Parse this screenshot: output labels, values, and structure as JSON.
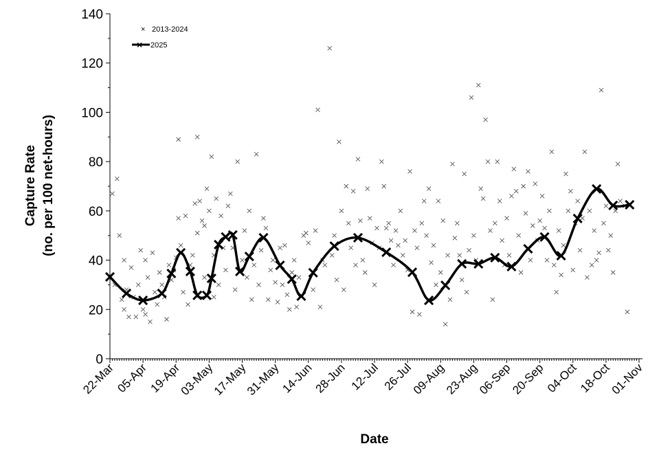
{
  "chart_data": {
    "type": "line",
    "xlabel": "Date",
    "ylabel_line1": "Capture Rate",
    "ylabel_line2": "(no. per 100 net-hours)",
    "ylim": [
      0,
      140
    ],
    "yticks": [
      0,
      20,
      40,
      60,
      80,
      100,
      120,
      140
    ],
    "x_unit": "days since 22-Mar",
    "xlim": [
      0,
      224
    ],
    "xtick_labels": [
      "22-Mar",
      "05-Apr",
      "19-Apr",
      "03-May",
      "17-May",
      "31-May",
      "14-Jun",
      "28-Jun",
      "12-Jul",
      "26-Jul",
      "09-Aug",
      "23-Aug",
      "06-Sep",
      "20-Sep",
      "04-Oct",
      "18-Oct",
      "01-Nov"
    ],
    "grid": false,
    "legend_position": "top-left",
    "series": [
      {
        "name": "2013-2024",
        "style": "scatter-x",
        "color": "#555555",
        "points": [
          [
            1,
            67
          ],
          [
            3,
            73
          ],
          [
            4,
            50
          ],
          [
            2,
            30
          ],
          [
            5,
            24
          ],
          [
            6,
            40
          ],
          [
            6,
            20
          ],
          [
            7,
            28
          ],
          [
            8,
            17
          ],
          [
            9,
            37
          ],
          [
            10,
            25
          ],
          [
            11,
            17
          ],
          [
            12,
            30
          ],
          [
            13,
            44
          ],
          [
            14,
            20
          ],
          [
            15,
            18
          ],
          [
            15,
            40
          ],
          [
            16,
            33
          ],
          [
            17,
            15
          ],
          [
            18,
            43
          ],
          [
            19,
            27
          ],
          [
            20,
            22
          ],
          [
            21,
            35
          ],
          [
            22,
            30
          ],
          [
            23,
            25
          ],
          [
            24,
            16
          ],
          [
            25,
            38
          ],
          [
            26,
            32
          ],
          [
            27,
            36
          ],
          [
            28,
            41
          ],
          [
            29,
            89
          ],
          [
            29,
            57
          ],
          [
            30,
            46
          ],
          [
            31,
            27
          ],
          [
            32,
            58
          ],
          [
            33,
            22
          ],
          [
            34,
            38
          ],
          [
            35,
            42
          ],
          [
            36,
            63
          ],
          [
            37,
            90
          ],
          [
            37,
            51
          ],
          [
            38,
            64
          ],
          [
            39,
            56
          ],
          [
            40,
            54
          ],
          [
            40,
            33
          ],
          [
            41,
            69
          ],
          [
            42,
            60
          ],
          [
            43,
            82
          ],
          [
            44,
            42
          ],
          [
            44,
            25
          ],
          [
            45,
            65
          ],
          [
            46,
            30
          ],
          [
            47,
            58
          ],
          [
            48,
            45
          ],
          [
            49,
            36
          ],
          [
            50,
            62
          ],
          [
            51,
            67
          ],
          [
            52,
            45
          ],
          [
            53,
            28
          ],
          [
            54,
            80
          ],
          [
            55,
            36
          ],
          [
            56,
            40
          ],
          [
            57,
            52
          ],
          [
            58,
            33
          ],
          [
            59,
            60
          ],
          [
            60,
            24
          ],
          [
            61,
            38
          ],
          [
            62,
            83
          ],
          [
            63,
            30
          ],
          [
            64,
            44
          ],
          [
            65,
            57
          ],
          [
            66,
            53
          ],
          [
            67,
            24
          ],
          [
            68,
            36
          ],
          [
            69,
            40
          ],
          [
            70,
            31
          ],
          [
            71,
            23
          ],
          [
            72,
            45
          ],
          [
            73,
            30
          ],
          [
            74,
            46
          ],
          [
            75,
            26
          ],
          [
            76,
            20
          ],
          [
            77,
            35
          ],
          [
            78,
            40
          ],
          [
            79,
            21
          ],
          [
            80,
            33
          ],
          [
            82,
            50
          ],
          [
            83,
            51
          ],
          [
            84,
            47
          ],
          [
            86,
            28
          ],
          [
            87,
            52
          ],
          [
            88,
            101
          ],
          [
            89,
            21
          ],
          [
            90,
            40
          ],
          [
            91,
            38
          ],
          [
            93,
            126
          ],
          [
            94,
            42
          ],
          [
            95,
            50
          ],
          [
            96,
            32
          ],
          [
            97,
            88
          ],
          [
            98,
            60
          ],
          [
            99,
            28
          ],
          [
            100,
            70
          ],
          [
            101,
            55
          ],
          [
            102,
            45
          ],
          [
            103,
            68
          ],
          [
            104,
            38
          ],
          [
            105,
            81
          ],
          [
            106,
            56
          ],
          [
            107,
            40
          ],
          [
            108,
            35
          ],
          [
            109,
            69
          ],
          [
            110,
            57
          ],
          [
            111,
            47
          ],
          [
            112,
            30
          ],
          [
            113,
            53
          ],
          [
            114,
            45
          ],
          [
            115,
            80
          ],
          [
            116,
            70
          ],
          [
            117,
            53
          ],
          [
            118,
            55
          ],
          [
            119,
            48
          ],
          [
            120,
            38
          ],
          [
            121,
            52
          ],
          [
            122,
            46
          ],
          [
            123,
            60
          ],
          [
            124,
            42
          ],
          [
            125,
            48
          ],
          [
            126,
            36
          ],
          [
            127,
            76
          ],
          [
            128,
            19
          ],
          [
            129,
            52
          ],
          [
            130,
            45
          ],
          [
            131,
            18
          ],
          [
            132,
            55
          ],
          [
            133,
            64
          ],
          [
            134,
            50
          ],
          [
            135,
            69
          ],
          [
            136,
            39
          ],
          [
            137,
            46
          ],
          [
            138,
            30
          ],
          [
            139,
            64
          ],
          [
            140,
            35
          ],
          [
            141,
            56
          ],
          [
            142,
            14
          ],
          [
            143,
            42
          ],
          [
            144,
            24
          ],
          [
            145,
            79
          ],
          [
            146,
            49
          ],
          [
            147,
            55
          ],
          [
            148,
            42
          ],
          [
            149,
            32
          ],
          [
            150,
            75
          ],
          [
            151,
            27
          ],
          [
            152,
            44
          ],
          [
            153,
            106
          ],
          [
            154,
            50
          ],
          [
            155,
            40
          ],
          [
            156,
            111
          ],
          [
            157,
            69
          ],
          [
            158,
            65
          ],
          [
            159,
            97
          ],
          [
            160,
            80
          ],
          [
            161,
            52
          ],
          [
            162,
            24
          ],
          [
            163,
            55
          ],
          [
            164,
            80
          ],
          [
            165,
            64
          ],
          [
            166,
            48
          ],
          [
            167,
            38
          ],
          [
            168,
            57
          ],
          [
            169,
            42
          ],
          [
            170,
            66
          ],
          [
            171,
            77
          ],
          [
            172,
            68
          ],
          [
            173,
            50
          ],
          [
            174,
            35
          ],
          [
            175,
            70
          ],
          [
            176,
            59
          ],
          [
            177,
            76
          ],
          [
            178,
            40
          ],
          [
            179,
            54
          ],
          [
            180,
            71
          ],
          [
            181,
            48
          ],
          [
            182,
            56
          ],
          [
            183,
            66
          ],
          [
            184,
            53
          ],
          [
            185,
            40
          ],
          [
            186,
            60
          ],
          [
            187,
            84
          ],
          [
            188,
            38
          ],
          [
            189,
            27
          ],
          [
            190,
            52
          ],
          [
            191,
            34
          ],
          [
            192,
            46
          ],
          [
            193,
            75
          ],
          [
            194,
            60
          ],
          [
            195,
            68
          ],
          [
            196,
            36
          ],
          [
            197,
            55
          ],
          [
            198,
            64
          ],
          [
            199,
            44
          ],
          [
            200,
            57
          ],
          [
            201,
            84
          ],
          [
            202,
            33
          ],
          [
            203,
            60
          ],
          [
            204,
            38
          ],
          [
            205,
            52
          ],
          [
            206,
            40
          ],
          [
            207,
            43
          ],
          [
            208,
            109
          ],
          [
            209,
            55
          ],
          [
            210,
            62
          ],
          [
            211,
            44
          ],
          [
            212,
            50
          ],
          [
            213,
            35
          ],
          [
            214,
            60
          ],
          [
            215,
            79
          ],
          [
            216,
            64
          ],
          [
            218,
            62
          ],
          [
            219,
            19
          ]
        ]
      },
      {
        "name": "2025",
        "style": "smooth-line-x-markers",
        "color": "#000000",
        "points": [
          [
            0,
            33.2
          ],
          [
            7,
            26.5
          ],
          [
            14,
            23.7
          ],
          [
            22,
            26.5
          ],
          [
            26,
            34.6
          ],
          [
            30,
            43
          ],
          [
            34,
            35.4
          ],
          [
            37,
            25.7
          ],
          [
            41,
            25.7
          ],
          [
            43,
            32.6
          ],
          [
            46,
            46.3
          ],
          [
            49,
            49.4
          ],
          [
            52,
            50.2
          ],
          [
            55,
            35.4
          ],
          [
            59,
            41.5
          ],
          [
            65,
            49.1
          ],
          [
            72,
            37.9
          ],
          [
            77,
            32.3
          ],
          [
            81,
            25.4
          ],
          [
            86,
            34.9
          ],
          [
            95,
            45.7
          ],
          [
            105,
            49.1
          ],
          [
            117,
            43.2
          ],
          [
            128,
            35.1
          ],
          [
            135,
            23.7
          ],
          [
            142,
            29.8
          ],
          [
            149,
            38.5
          ],
          [
            156,
            38.5
          ],
          [
            163,
            41
          ],
          [
            170,
            37.4
          ],
          [
            177,
            44.6
          ],
          [
            184,
            49.4
          ],
          [
            191,
            41.8
          ],
          [
            198,
            56.9
          ],
          [
            206,
            68.9
          ],
          [
            213,
            62.2
          ],
          [
            220,
            62.5
          ]
        ]
      }
    ]
  }
}
